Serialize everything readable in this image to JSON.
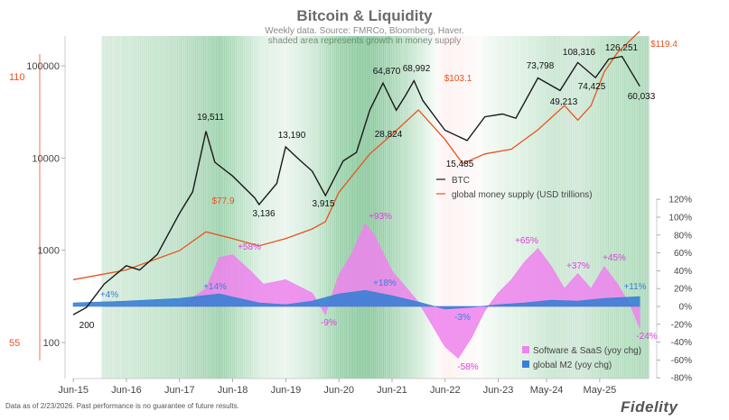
{
  "title": "Bitcoin & Liquidity",
  "subtitle_1": "Weekly data.  Source: FMRCo, Bloomberg, Haver.",
  "subtitle_2": "shaded area represents growth in money supply",
  "footnote": "Data as of 2/23/2026. Past performance is no guarantee of future results.",
  "logo": "Fidelity",
  "colors": {
    "btc": "#1a1a1a",
    "money_supply": "#e8531f",
    "saas": "#ee82ee",
    "m2": "#3a7fd5",
    "growth_shade": "#2e9e4f",
    "decline_shade": "#f29a9a"
  },
  "chart_data": [
    {
      "type": "line",
      "log_scale": true,
      "x_ticks": [
        "Jun-15",
        "Jun-16",
        "Jun-17",
        "Jun-18",
        "Jun-19",
        "Jun-20",
        "Jun-21",
        "Jun-22",
        "Jun-23",
        "May-24",
        "May-25"
      ],
      "left_axis_ticks": [
        "100",
        "1000",
        "10000",
        "100000"
      ],
      "right_red_axis_ticks": [
        "55",
        "110"
      ],
      "ylim_btc": [
        100,
        150000
      ],
      "series": [
        {
          "name": "BTC",
          "x": [
            "2015-06",
            "2015-09",
            "2016-01",
            "2016-06",
            "2016-09",
            "2017-01",
            "2017-06",
            "2017-09",
            "2017-12",
            "2018-02",
            "2018-06",
            "2018-11",
            "2018-12",
            "2019-04",
            "2019-06",
            "2019-09",
            "2019-12",
            "2020-03",
            "2020-07",
            "2020-10",
            "2021-01",
            "2021-04",
            "2021-07",
            "2021-09",
            "2021-11",
            "2022-01",
            "2022-06",
            "2022-11",
            "2023-03",
            "2023-07",
            "2023-10",
            "2024-03",
            "2024-08",
            "2024-12",
            "2025-04",
            "2025-07",
            "2025-10",
            "2025-12",
            "2026-02"
          ],
          "values": [
            200,
            240,
            430,
            680,
            610,
            900,
            2500,
            4300,
            19511,
            9000,
            6400,
            3700,
            3136,
            5300,
            13190,
            9700,
            7200,
            3915,
            9300,
            11500,
            33000,
            64870,
            33000,
            47000,
            68992,
            42000,
            20000,
            15485,
            28000,
            30000,
            27000,
            73798,
            54000,
            108316,
            74425,
            118000,
            126251,
            87000,
            60033
          ]
        },
        {
          "name": "global money supply (USD trillions)",
          "x": [
            "2015-06",
            "2016-06",
            "2017-06",
            "2017-12",
            "2018-06",
            "2018-12",
            "2019-06",
            "2019-12",
            "2020-03",
            "2020-06",
            "2021-01",
            "2021-06",
            "2021-12",
            "2022-06",
            "2022-10",
            "2023-03",
            "2023-09",
            "2024-03",
            "2024-09",
            "2024-12",
            "2025-03",
            "2025-06",
            "2025-09",
            "2026-02"
          ],
          "values": [
            68,
            70,
            74,
            77.9,
            76.5,
            75,
            76.5,
            78.5,
            80,
            86,
            94,
            98,
            103.1,
            97,
            92,
            94,
            95,
            99,
            104,
            101,
            104,
            111,
            115,
            119.4
          ]
        }
      ],
      "annotations_btc": [
        "200",
        "19,511",
        "3,136",
        "13,190",
        "3,915",
        "64,870",
        "28,824",
        "68,992",
        "15,485",
        "73,798",
        "49,213",
        "108,316",
        "74,425",
        "126,251",
        "60,033"
      ],
      "annotations_money_supply": [
        "$77.9",
        "$103.1",
        "$119.4"
      ]
    },
    {
      "type": "area",
      "right_axis_ticks": [
        "120%",
        "100%",
        "80%",
        "60%",
        "40%",
        "20%",
        "0%",
        "-20%",
        "-40%",
        "-60%",
        "-80%"
      ],
      "ylim": [
        -80,
        120
      ],
      "series": [
        {
          "name": "Software & SaaS (yoy chg)",
          "x": [
            "2016-01",
            "2016-06",
            "2017-01",
            "2017-06",
            "2017-12",
            "2018-03",
            "2018-06",
            "2018-10",
            "2019-01",
            "2019-06",
            "2019-12",
            "2020-03",
            "2020-06",
            "2020-09",
            "2020-12",
            "2021-02",
            "2021-06",
            "2021-12",
            "2022-03",
            "2022-06",
            "2022-09",
            "2022-12",
            "2023-03",
            "2023-06",
            "2023-09",
            "2023-12",
            "2024-03",
            "2024-06",
            "2024-09",
            "2024-12",
            "2025-03",
            "2025-06",
            "2025-09",
            "2025-12",
            "2026-02"
          ],
          "values": [
            0,
            0,
            0,
            0,
            20,
            55,
            58,
            40,
            25,
            30,
            15,
            -9,
            35,
            60,
            93,
            80,
            40,
            5,
            -20,
            -45,
            -58,
            -35,
            -5,
            15,
            30,
            50,
            65,
            45,
            20,
            37,
            20,
            45,
            25,
            0,
            -24
          ]
        },
        {
          "name": "global M2 (yoy chg)",
          "x": [
            "2015-06",
            "2015-12",
            "2016-06",
            "2017-06",
            "2018-03",
            "2018-12",
            "2019-06",
            "2019-12",
            "2020-06",
            "2020-12",
            "2021-06",
            "2021-12",
            "2022-06",
            "2022-12",
            "2023-06",
            "2023-12",
            "2024-06",
            "2024-12",
            "2025-06",
            "2026-02"
          ],
          "values": [
            4,
            5,
            6,
            9,
            14,
            4,
            2,
            6,
            14,
            18,
            12,
            5,
            -3,
            -1,
            2,
            4,
            7,
            6,
            9,
            11
          ]
        }
      ],
      "annotations": [
        "+4%",
        "+14%",
        "+58%",
        "-9%",
        "+93%",
        "+18%",
        "-3%",
        "-58%",
        "+65%",
        "+37%",
        "+45%",
        "+11%",
        "-24%"
      ]
    }
  ]
}
